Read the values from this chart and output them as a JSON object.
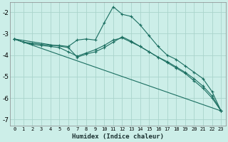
{
  "xlabel": "Humidex (Indice chaleur)",
  "background_color": "#cceee8",
  "grid_color": "#aad4cc",
  "line_color": "#1a6e60",
  "xlim": [
    -0.5,
    23.5
  ],
  "ylim": [
    -7.3,
    -1.55
  ],
  "xticks": [
    0,
    1,
    2,
    3,
    4,
    5,
    6,
    7,
    8,
    9,
    10,
    11,
    12,
    13,
    14,
    15,
    16,
    17,
    18,
    19,
    20,
    21,
    22,
    23
  ],
  "yticks": [
    -7,
    -6,
    -5,
    -4,
    -3,
    -2
  ],
  "series": [
    {
      "x": [
        0,
        1,
        2,
        3,
        4,
        5,
        6,
        7,
        8,
        9,
        10,
        11,
        12,
        13,
        14,
        15,
        16,
        17,
        18,
        19,
        20,
        21,
        22,
        23
      ],
      "y": [
        -3.25,
        -3.4,
        -3.45,
        -3.5,
        -3.55,
        -3.55,
        -3.6,
        -3.3,
        -3.25,
        -3.3,
        -2.5,
        -1.75,
        -2.1,
        -2.2,
        -2.6,
        -3.1,
        -3.6,
        -4.0,
        -4.2,
        -4.5,
        -4.8,
        -5.1,
        -5.7,
        -6.6
      ]
    },
    {
      "x": [
        0,
        1,
        2,
        3,
        4,
        5,
        6,
        7,
        8,
        9,
        10,
        11,
        12,
        13,
        14,
        15,
        16,
        17,
        18,
        19,
        20,
        21,
        22,
        23
      ],
      "y": [
        -3.25,
        -3.4,
        -3.5,
        -3.55,
        -3.6,
        -3.65,
        -3.85,
        -4.05,
        -3.9,
        -3.75,
        -3.55,
        -3.3,
        -3.2,
        -3.4,
        -3.6,
        -3.85,
        -4.1,
        -4.3,
        -4.55,
        -4.8,
        -5.1,
        -5.45,
        -5.9,
        -6.6
      ]
    },
    {
      "x": [
        0,
        6,
        7,
        8,
        9,
        10,
        11,
        12,
        13,
        14,
        15,
        16,
        17,
        18,
        19,
        20,
        21,
        22,
        23
      ],
      "y": [
        -3.25,
        -3.65,
        -4.1,
        -3.95,
        -3.85,
        -3.65,
        -3.4,
        -3.15,
        -3.35,
        -3.6,
        -3.85,
        -4.1,
        -4.35,
        -4.6,
        -4.85,
        -5.2,
        -5.55,
        -6.0,
        -6.6
      ]
    },
    {
      "x": [
        0,
        23
      ],
      "y": [
        -3.25,
        -6.6
      ]
    }
  ]
}
